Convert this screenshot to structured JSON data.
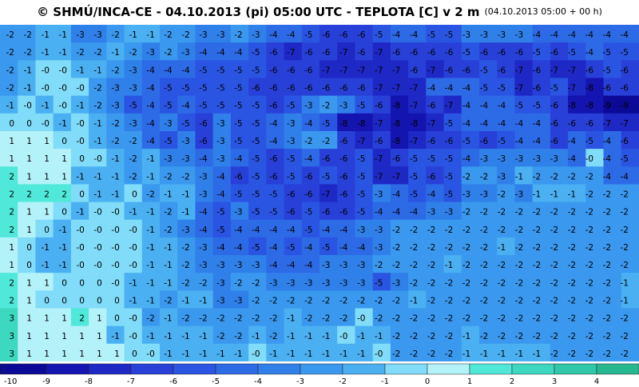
{
  "header": {
    "title": "© SHMÚ/INCA-CE - 04.10.2013 (pi) 05:00 UTC - TEPLOTA [C] v 2 m",
    "subtitle": "(04.10.2013 05:00 + 00 h)"
  },
  "map": {
    "grid": [
      [
        "-2",
        "-2",
        "-1",
        "-1",
        "-3",
        "-3",
        "-2",
        "-1",
        "-1",
        "-2",
        "-2",
        "-3",
        "-3",
        "-2",
        "-3",
        "-4",
        "-4",
        "-5",
        "-6",
        "-6",
        "-6",
        "-5",
        "-4",
        "-4",
        "-5",
        "-5",
        "-3",
        "-3",
        "-3",
        "-3",
        "-4",
        "-4",
        "-4",
        "-4",
        "-4",
        "-4"
      ],
      [
        "-2",
        "-2",
        "-1",
        "-1",
        "-2",
        "-2",
        "-1",
        "-2",
        "-3",
        "-2",
        "-3",
        "-4",
        "-4",
        "-4",
        "-5",
        "-6",
        "-7",
        "-6",
        "-6",
        "-7",
        "-6",
        "-7",
        "-6",
        "-6",
        "-6",
        "-6",
        "-5",
        "-6",
        "-6",
        "-6",
        "-5",
        "-6",
        "-5",
        "-4",
        "-5",
        "-5"
      ],
      [
        "-2",
        "-1",
        "-0",
        "-0",
        "-1",
        "-1",
        "-2",
        "-3",
        "-4",
        "-4",
        "-4",
        "-5",
        "-5",
        "-5",
        "-5",
        "-6",
        "-6",
        "-6",
        "-7",
        "-7",
        "-7",
        "-7",
        "-7",
        "-6",
        "-7",
        "-6",
        "-6",
        "-5",
        "-6",
        "-7",
        "-6",
        "-7",
        "-7",
        "-6",
        "-5",
        "-6"
      ],
      [
        "-2",
        "-1",
        "-0",
        "-0",
        "-0",
        "-2",
        "-3",
        "-3",
        "-4",
        "-5",
        "-5",
        "-5",
        "-5",
        "-5",
        "-6",
        "-6",
        "-6",
        "-6",
        "-6",
        "-6",
        "-6",
        "-7",
        "-7",
        "-7",
        "-4",
        "-4",
        "-4",
        "-5",
        "-5",
        "-7",
        "-6",
        "-5",
        "-7",
        "-8",
        "-6",
        "-6"
      ],
      [
        "-1",
        "-0",
        "-1",
        "-0",
        "-1",
        "-2",
        "-3",
        "-5",
        "-4",
        "-5",
        "-4",
        "-5",
        "-5",
        "-5",
        "-5",
        "-6",
        "-5",
        "-3",
        "-2",
        "-3",
        "-5",
        "-6",
        "-8",
        "-7",
        "-6",
        "-7",
        "-4",
        "-4",
        "-4",
        "-5",
        "-5",
        "-6",
        "-8",
        "-8",
        "-9",
        "-9"
      ],
      [
        "0",
        "0",
        "-0",
        "-1",
        "-0",
        "-1",
        "-2",
        "-3",
        "-4",
        "-3",
        "-5",
        "-6",
        "-3",
        "-5",
        "-5",
        "-4",
        "-3",
        "-4",
        "-5",
        "-8",
        "-8",
        "-7",
        "-8",
        "-8",
        "-7",
        "-5",
        "-4",
        "-4",
        "-4",
        "-4",
        "-4",
        "-6",
        "-6",
        "-6",
        "-7",
        "-7"
      ],
      [
        "1",
        "1",
        "1",
        "0",
        "-0",
        "-1",
        "-2",
        "-2",
        "-4",
        "-5",
        "-3",
        "-6",
        "-3",
        "-5",
        "-5",
        "-4",
        "-3",
        "-2",
        "-2",
        "-6",
        "-7",
        "-6",
        "-8",
        "-7",
        "-6",
        "-6",
        "-5",
        "-6",
        "-5",
        "-4",
        "-4",
        "-6",
        "-4",
        "-5",
        "-4",
        "-6"
      ],
      [
        "1",
        "1",
        "1",
        "1",
        "0",
        "-0",
        "-1",
        "-2",
        "-1",
        "-3",
        "-3",
        "-4",
        "-3",
        "-4",
        "-5",
        "-6",
        "-5",
        "-4",
        "-6",
        "-6",
        "-5",
        "-7",
        "-6",
        "-5",
        "-5",
        "-5",
        "-4",
        "-3",
        "-3",
        "-3",
        "-3",
        "-3",
        "-4",
        "-0",
        "-4",
        "-5"
      ],
      [
        "2",
        "1",
        "1",
        "1",
        "-1",
        "-1",
        "-1",
        "-2",
        "-1",
        "-2",
        "-2",
        "-3",
        "-4",
        "-6",
        "-5",
        "-6",
        "-5",
        "-6",
        "-5",
        "-6",
        "-5",
        "-7",
        "-7",
        "-5",
        "-6",
        "-5",
        "-2",
        "-2",
        "-3",
        "-1",
        "-2",
        "-2",
        "-2",
        "-2",
        "-4",
        "-4"
      ],
      [
        "2",
        "2",
        "2",
        "2",
        "0",
        "-1",
        "-1",
        "0",
        "-2",
        "-1",
        "-1",
        "-3",
        "-4",
        "-5",
        "-5",
        "-5",
        "-6",
        "-6",
        "-7",
        "-6",
        "-5",
        "-3",
        "-4",
        "-5",
        "-4",
        "-5",
        "-3",
        "-3",
        "-2",
        "-3",
        "-1",
        "-1",
        "-1",
        "-2",
        "-2",
        "-2"
      ],
      [
        "2",
        "1",
        "1",
        "0",
        "-1",
        "-0",
        "-0",
        "-1",
        "-1",
        "-2",
        "-1",
        "-4",
        "-5",
        "-3",
        "-5",
        "-5",
        "-6",
        "-5",
        "-6",
        "-6",
        "-5",
        "-4",
        "-4",
        "-4",
        "-3",
        "-3",
        "-2",
        "-2",
        "-2",
        "-2",
        "-2",
        "-2",
        "-2",
        "-2",
        "-2",
        "-2"
      ],
      [
        "2",
        "1",
        "0",
        "-1",
        "-0",
        "-0",
        "-0",
        "-0",
        "-1",
        "-2",
        "-3",
        "-4",
        "-5",
        "-4",
        "-4",
        "-4",
        "-4",
        "-5",
        "-4",
        "-4",
        "-3",
        "-3",
        "-2",
        "-2",
        "-2",
        "-2",
        "-2",
        "-2",
        "-2",
        "-2",
        "-2",
        "-2",
        "-2",
        "-2",
        "-2",
        "-2"
      ],
      [
        "1",
        "0",
        "-1",
        "-1",
        "-0",
        "-0",
        "-0",
        "-0",
        "-1",
        "-1",
        "-2",
        "-3",
        "-4",
        "-4",
        "-5",
        "-4",
        "-5",
        "-4",
        "-5",
        "-4",
        "-4",
        "-3",
        "-2",
        "-2",
        "-2",
        "-2",
        "-2",
        "-2",
        "-1",
        "-2",
        "-2",
        "-2",
        "-2",
        "-2",
        "-2",
        "-2"
      ],
      [
        "1",
        "0",
        "-1",
        "-1",
        "-0",
        "-0",
        "-0",
        "-0",
        "-1",
        "-1",
        "-2",
        "-3",
        "-3",
        "-3",
        "-3",
        "-4",
        "-4",
        "-4",
        "-3",
        "-3",
        "-3",
        "-2",
        "-2",
        "-2",
        "-2",
        "-1",
        "-2",
        "-2",
        "-2",
        "-2",
        "-2",
        "-2",
        "-2",
        "-2",
        "-2",
        "-2"
      ],
      [
        "2",
        "1",
        "1",
        "0",
        "0",
        "0",
        "-0",
        "-1",
        "-1",
        "-1",
        "-2",
        "-2",
        "-3",
        "-2",
        "-2",
        "-3",
        "-3",
        "-3",
        "-3",
        "-3",
        "-3",
        "-5",
        "-3",
        "-2",
        "-2",
        "-2",
        "-2",
        "-2",
        "-2",
        "-2",
        "-2",
        "-2",
        "-2",
        "-2",
        "-2",
        "-1"
      ],
      [
        "2",
        "1",
        "0",
        "0",
        "0",
        "0",
        "0",
        "-1",
        "-1",
        "-2",
        "-1",
        "-1",
        "-3",
        "-3",
        "-2",
        "-2",
        "-2",
        "-2",
        "-2",
        "-2",
        "-2",
        "-2",
        "-2",
        "-1",
        "-2",
        "-2",
        "-2",
        "-2",
        "-2",
        "-2",
        "-2",
        "-2",
        "-2",
        "-2",
        "-2",
        "-1"
      ],
      [
        "3",
        "1",
        "1",
        "1",
        "2",
        "1",
        "0",
        "-0",
        "-2",
        "-1",
        "-2",
        "-2",
        "-2",
        "-2",
        "-2",
        "-2",
        "-1",
        "-2",
        "-2",
        "-2",
        "-0",
        "-2",
        "-2",
        "-2",
        "-2",
        "-2",
        "-2",
        "-2",
        "-2",
        "-2",
        "-2",
        "-2",
        "-2",
        "-2",
        "-2",
        "-2"
      ],
      [
        "3",
        "1",
        "1",
        "1",
        "1",
        "1",
        "-1",
        "-0",
        "-1",
        "-1",
        "-1",
        "-1",
        "-2",
        "-2",
        "-1",
        "-2",
        "-1",
        "-1",
        "-1",
        "-0",
        "-1",
        "-1",
        "-2",
        "-2",
        "-2",
        "-2",
        "-1",
        "-2",
        "-2",
        "-2",
        "-2",
        "-2",
        "-2",
        "-2",
        "-2",
        "-2"
      ],
      [
        "3",
        "1",
        "1",
        "1",
        "1",
        "1",
        "1",
        "0",
        "-0",
        "-1",
        "-1",
        "-1",
        "-1",
        "-1",
        "-0",
        "-1",
        "-1",
        "-1",
        "-1",
        "-1",
        "-1",
        "-0",
        "-2",
        "-2",
        "-2",
        "-2",
        "-1",
        "-1",
        "-1",
        "-1",
        "-1",
        "-2",
        "-2",
        "-2",
        "-2",
        "-2"
      ]
    ]
  },
  "legend": {
    "labels": [
      "-10",
      "-9",
      "-8",
      "-7",
      "-6",
      "-5",
      "-4",
      "-3",
      "-2",
      "-1",
      "0",
      "1",
      "2",
      "3",
      "4"
    ],
    "colors": [
      "#0a0a96",
      "#1414b0",
      "#1e28c4",
      "#2840d8",
      "#2a55e2",
      "#2d6ae6",
      "#3080ea",
      "#3a98ee",
      "#4ab0f2",
      "#80dcf8",
      "#b4f2fa",
      "#50e8d8",
      "#3cd8c0",
      "#30c8a8",
      "#28b890"
    ]
  }
}
